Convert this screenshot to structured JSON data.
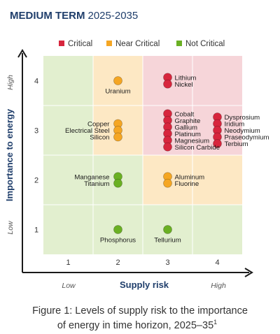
{
  "title": {
    "bold": "MEDIUM TERM",
    "light": "2025-2035"
  },
  "legend": [
    {
      "label": "Critical",
      "color": "#d7263d"
    },
    {
      "label": "Near Critical",
      "color": "#f5a623"
    },
    {
      "label": "Not Critical",
      "color": "#6ab023"
    }
  ],
  "chart_data": {
    "type": "scatter",
    "xlabel": "Supply risk",
    "ylabel": "Importance to energy",
    "x_ticks": [
      "1",
      "2",
      "3",
      "4"
    ],
    "y_ticks": [
      "1",
      "2",
      "3",
      "4"
    ],
    "x_end_labels": {
      "low": "Low",
      "high": "High"
    },
    "y_end_labels": {
      "low": "Low",
      "high": "High"
    },
    "xlim": [
      0.5,
      4.5
    ],
    "ylim": [
      0.5,
      4.5
    ],
    "cell_colors": {
      "critical": "#f6d5d9",
      "near_critical": "#fde8c4",
      "not_critical": "#e2efcf"
    },
    "cells": [
      [
        "not_critical",
        "not_critical",
        "not_critical",
        "not_critical"
      ],
      [
        "not_critical",
        "not_critical",
        "near_critical",
        "near_critical"
      ],
      [
        "not_critical",
        "near_critical",
        "critical",
        "critical"
      ],
      [
        "not_critical",
        "near_critical",
        "critical",
        "critical"
      ]
    ],
    "groups": [
      {
        "x": 2,
        "y": 4,
        "status": "Near Critical",
        "materials": [
          "Uranium"
        ]
      },
      {
        "x": 3,
        "y": 4,
        "status": "Critical",
        "materials": [
          "Lithium",
          "Nickel"
        ]
      },
      {
        "x": 2,
        "y": 3,
        "status": "Near Critical",
        "materials": [
          "Copper",
          "Electrical Steel",
          "Silicon"
        ]
      },
      {
        "x": 3,
        "y": 3,
        "status": "Critical",
        "materials": [
          "Cobalt",
          "Graphite",
          "Gallium",
          "Platinum",
          "Magnesium",
          "Silicon Carbide"
        ]
      },
      {
        "x": 4,
        "y": 3,
        "status": "Critical",
        "materials": [
          "Dysprosium",
          "Iridium",
          "Neodymium",
          "Praseodymium",
          "Terbium"
        ]
      },
      {
        "x": 2,
        "y": 2,
        "status": "Not Critical",
        "materials": [
          "Manganese",
          "Titanium"
        ]
      },
      {
        "x": 3,
        "y": 2,
        "status": "Near Critical",
        "materials": [
          "Aluminum",
          "Fluorine"
        ]
      },
      {
        "x": 2,
        "y": 1,
        "status": "Not Critical",
        "materials": [
          "Phosphorus"
        ]
      },
      {
        "x": 3,
        "y": 1,
        "status": "Not Critical",
        "materials": [
          "Tellurium"
        ]
      }
    ]
  },
  "caption": {
    "line1": "Figure 1: Levels of supply risk to the importance",
    "line2": "of energy in time horizon, 2025–35",
    "superscript": "1"
  }
}
